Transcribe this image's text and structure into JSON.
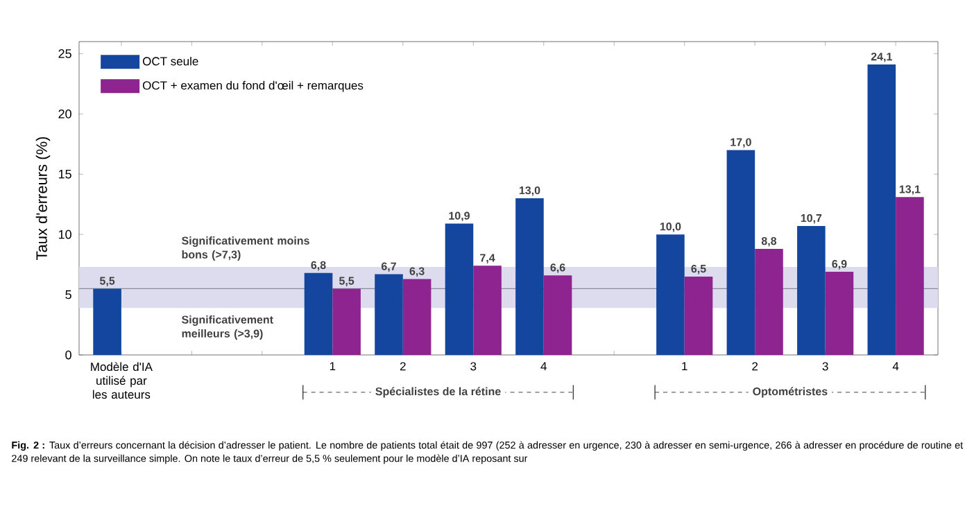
{
  "chart_data": {
    "type": "bar",
    "categories": [
      "Modèle d'IA utilisé par les auteurs",
      null,
      null,
      "1",
      "2",
      "3",
      "4",
      null,
      "1",
      "2",
      "3",
      "4"
    ],
    "series": [
      {
        "name": "OCT seule",
        "color": "#1446a0",
        "values": [
          5.5,
          null,
          null,
          6.8,
          6.7,
          10.9,
          13.0,
          null,
          10.0,
          17.0,
          10.7,
          24.1
        ],
        "value_labels": [
          "5,5",
          null,
          null,
          "6,8",
          "6,7",
          "10,9",
          "13,0",
          null,
          "10,0",
          "17,0",
          "10,7",
          "24,1"
        ]
      },
      {
        "name": "OCT + examen du fond d'œil + remarques",
        "color": "#8e248f",
        "values": [
          null,
          null,
          null,
          5.5,
          6.3,
          7.4,
          6.6,
          null,
          6.5,
          8.8,
          6.9,
          13.1
        ],
        "value_labels": [
          null,
          null,
          null,
          "5,5",
          "6,3",
          "7,4",
          "6,6",
          null,
          "6,5",
          "8,8",
          "6,9",
          "13,1"
        ]
      }
    ],
    "ylabel": "Taux d'erreurs (%)",
    "ylim": [
      0,
      26
    ],
    "yticks": [
      0,
      5,
      10,
      15,
      20,
      25
    ],
    "legend": "top left",
    "bands": [
      {
        "axis": "y",
        "from": 3.9,
        "to": 7.3,
        "color": "#dcdcee"
      }
    ],
    "ref_lines": [
      {
        "axis": "y",
        "value": 5.5,
        "color": "#8a8a9c"
      }
    ],
    "annotations": [
      "Significativement moins bons (>7,3)",
      "Significativement meilleurs (>3,9)",
      "Spécialistes de la rétine",
      "Optométristes",
      "**Fig. 2 :** Taux d’erreurs concernant la décision d’adresser le patient. Le nombre de patients total était de 997 (252 à adresser en urgence, 230 à adresser en semi-urgence, 266 à adresser en procédure de routine et 249 relevant de la surveillance simple. On note le taux d’erreur de 5,5 % seulement pour le modèle d’IA reposant sur"
    ]
  }
}
